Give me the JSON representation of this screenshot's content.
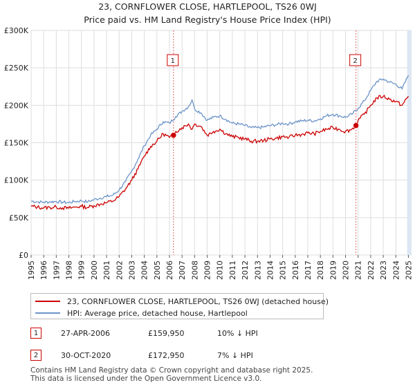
{
  "title": {
    "line1": "23, CORNFLOWER CLOSE, HARTLEPOOL, TS26 0WJ",
    "line2": "Price paid vs. HM Land Registry's House Price Index (HPI)"
  },
  "colors": {
    "price": "#cc0000",
    "hpi": "#6b93c9",
    "grid": "#dddddd",
    "vline": "#e06060",
    "band": "#dde6f3"
  },
  "chart_data": {
    "type": "line",
    "x_range": [
      1995,
      2025.25
    ],
    "ylim": [
      0,
      300000
    ],
    "y_ticks": [
      0,
      50000,
      100000,
      150000,
      200000,
      250000,
      300000
    ],
    "y_tick_labels": [
      "£0",
      "£50K",
      "£100K",
      "£150K",
      "£200K",
      "£250K",
      "£300K"
    ],
    "x_ticks": [
      1995,
      1996,
      1997,
      1998,
      1999,
      2000,
      2001,
      2002,
      2003,
      2004,
      2005,
      2006,
      2007,
      2008,
      2009,
      2010,
      2011,
      2012,
      2013,
      2014,
      2015,
      2016,
      2017,
      2018,
      2019,
      2020,
      2021,
      2022,
      2023,
      2024,
      2025
    ],
    "x_tick_labels": [
      "1995",
      "1996",
      "1997",
      "1998",
      "1999",
      "2000",
      "2001",
      "2002",
      "2003",
      "2004",
      "2005",
      "2006",
      "2007",
      "2008",
      "2009",
      "2010",
      "2011",
      "2012",
      "2013",
      "2014",
      "2015",
      "2016",
      "2017",
      "2018",
      "2019",
      "2020",
      "2021",
      "2022",
      "2023",
      "2024",
      "2025"
    ],
    "series": [
      {
        "name": "23, CORNFLOWER CLOSE, HARTLEPOOL, TS26 0WJ (detached house)",
        "x": [
          1995,
          1995.5,
          1996,
          1996.5,
          1997,
          1997.5,
          1998,
          1998.5,
          1999,
          1999.5,
          2000,
          2000.5,
          2001,
          2001.5,
          2002,
          2002.5,
          2003,
          2003.5,
          2004,
          2004.5,
          2005,
          2005.5,
          2006,
          2006.32,
          2006.5,
          2007,
          2007.5,
          2007.8,
          2008,
          2008.5,
          2009,
          2009.5,
          2010,
          2010.5,
          2011,
          2011.5,
          2012,
          2012.5,
          2013,
          2013.5,
          2014,
          2014.5,
          2015,
          2015.5,
          2016,
          2016.5,
          2017,
          2017.5,
          2018,
          2018.5,
          2019,
          2019.5,
          2020,
          2020.5,
          2020.83,
          2021,
          2021.5,
          2022,
          2022.5,
          2023,
          2023.5,
          2024,
          2024.5,
          2025
        ],
        "values": [
          65000,
          64000,
          63000,
          63500,
          64000,
          63000,
          62500,
          64000,
          65000,
          63500,
          66000,
          68000,
          70000,
          72000,
          78000,
          88000,
          100000,
          115000,
          132000,
          145000,
          152000,
          162000,
          157000,
          159950,
          165000,
          170000,
          175000,
          168000,
          175000,
          172000,
          160000,
          165000,
          168000,
          162000,
          158000,
          157000,
          155000,
          152000,
          152000,
          153000,
          155000,
          156000,
          158000,
          157000,
          160000,
          161000,
          163000,
          162000,
          165000,
          168000,
          170000,
          168000,
          165000,
          168000,
          172950,
          180000,
          188000,
          200000,
          210000,
          212000,
          208000,
          205000,
          200000,
          212000
        ],
        "color": "#cc0000"
      },
      {
        "name": "HPI: Average price, detached house, Hartlepool",
        "x": [
          1995,
          1995.5,
          1996,
          1996.5,
          1997,
          1997.5,
          1998,
          1998.5,
          1999,
          1999.5,
          2000,
          2000.5,
          2001,
          2001.5,
          2002,
          2002.5,
          2003,
          2003.5,
          2004,
          2004.5,
          2005,
          2005.5,
          2006,
          2006.5,
          2007,
          2007.5,
          2007.8,
          2008,
          2008.5,
          2009,
          2009.5,
          2010,
          2010.5,
          2011,
          2011.5,
          2012,
          2012.5,
          2013,
          2013.5,
          2014,
          2014.5,
          2015,
          2015.5,
          2016,
          2016.5,
          2017,
          2017.5,
          2018,
          2018.5,
          2019,
          2019.5,
          2020,
          2020.5,
          2021,
          2021.5,
          2022,
          2022.5,
          2023,
          2023.5,
          2024,
          2024.5,
          2025
        ],
        "values": [
          72000,
          71000,
          70500,
          71000,
          71500,
          70500,
          70000,
          71500,
          72500,
          71000,
          74000,
          76000,
          78000,
          80000,
          87000,
          98000,
          112000,
          128000,
          146000,
          160000,
          168000,
          178000,
          176000,
          185000,
          192000,
          198000,
          207000,
          195000,
          190000,
          180000,
          184000,
          186000,
          181000,
          176000,
          175000,
          173000,
          170000,
          170000,
          171000,
          173000,
          174000,
          176000,
          175000,
          178000,
          179000,
          180000,
          179000,
          182000,
          186000,
          188000,
          186000,
          184000,
          188000,
          196000,
          206000,
          220000,
          232000,
          235000,
          231000,
          228000,
          222000,
          240000
        ],
        "color": "#6b93c9"
      }
    ],
    "annotations": [
      {
        "label": "1",
        "x": 2006.32,
        "value": 159950
      },
      {
        "label": "2",
        "x": 2020.83,
        "value": 172950
      }
    ]
  },
  "legend": {
    "price_label": "23, CORNFLOWER CLOSE, HARTLEPOOL, TS26 0WJ (detached house)",
    "hpi_label": "HPI: Average price, detached house, Hartlepool"
  },
  "transactions": [
    {
      "marker": "1",
      "date": "27-APR-2006",
      "price": "£159,950",
      "hpi_change": "10% ↓ HPI"
    },
    {
      "marker": "2",
      "date": "30-OCT-2020",
      "price": "£172,950",
      "hpi_change": "7% ↓ HPI"
    }
  ],
  "footer": {
    "line1": "Contains HM Land Registry data © Crown copyright and database right 2025.",
    "line2": "This data is licensed under the Open Government Licence v3.0."
  }
}
